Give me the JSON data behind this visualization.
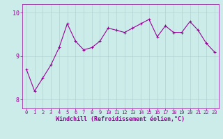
{
  "x": [
    0,
    1,
    2,
    3,
    4,
    5,
    6,
    7,
    8,
    9,
    10,
    11,
    12,
    13,
    14,
    15,
    16,
    17,
    18,
    19,
    20,
    21,
    22,
    23
  ],
  "y": [
    8.7,
    8.2,
    8.5,
    8.8,
    9.2,
    9.75,
    9.35,
    9.15,
    9.2,
    9.35,
    9.65,
    9.6,
    9.55,
    9.65,
    9.75,
    9.85,
    9.45,
    9.7,
    9.55,
    9.55,
    9.8,
    9.6,
    9.3,
    9.1
  ],
  "line_color": "#990099",
  "marker": "+",
  "markersize": 3,
  "linewidth": 0.8,
  "bg_color": "#ccecea",
  "grid_color": "#aacccc",
  "xlabel": "Windchill (Refroidissement éolien,°C)",
  "xlabel_fontsize": 6,
  "tick_fontsize": 5,
  "ytick_fontsize": 6,
  "ylim": [
    7.8,
    10.2
  ],
  "yticks": [
    8,
    9,
    10
  ],
  "xlim": [
    -0.5,
    23.5
  ],
  "xticks": [
    0,
    1,
    2,
    3,
    4,
    5,
    6,
    7,
    8,
    9,
    10,
    11,
    12,
    13,
    14,
    15,
    16,
    17,
    18,
    19,
    20,
    21,
    22,
    23
  ]
}
